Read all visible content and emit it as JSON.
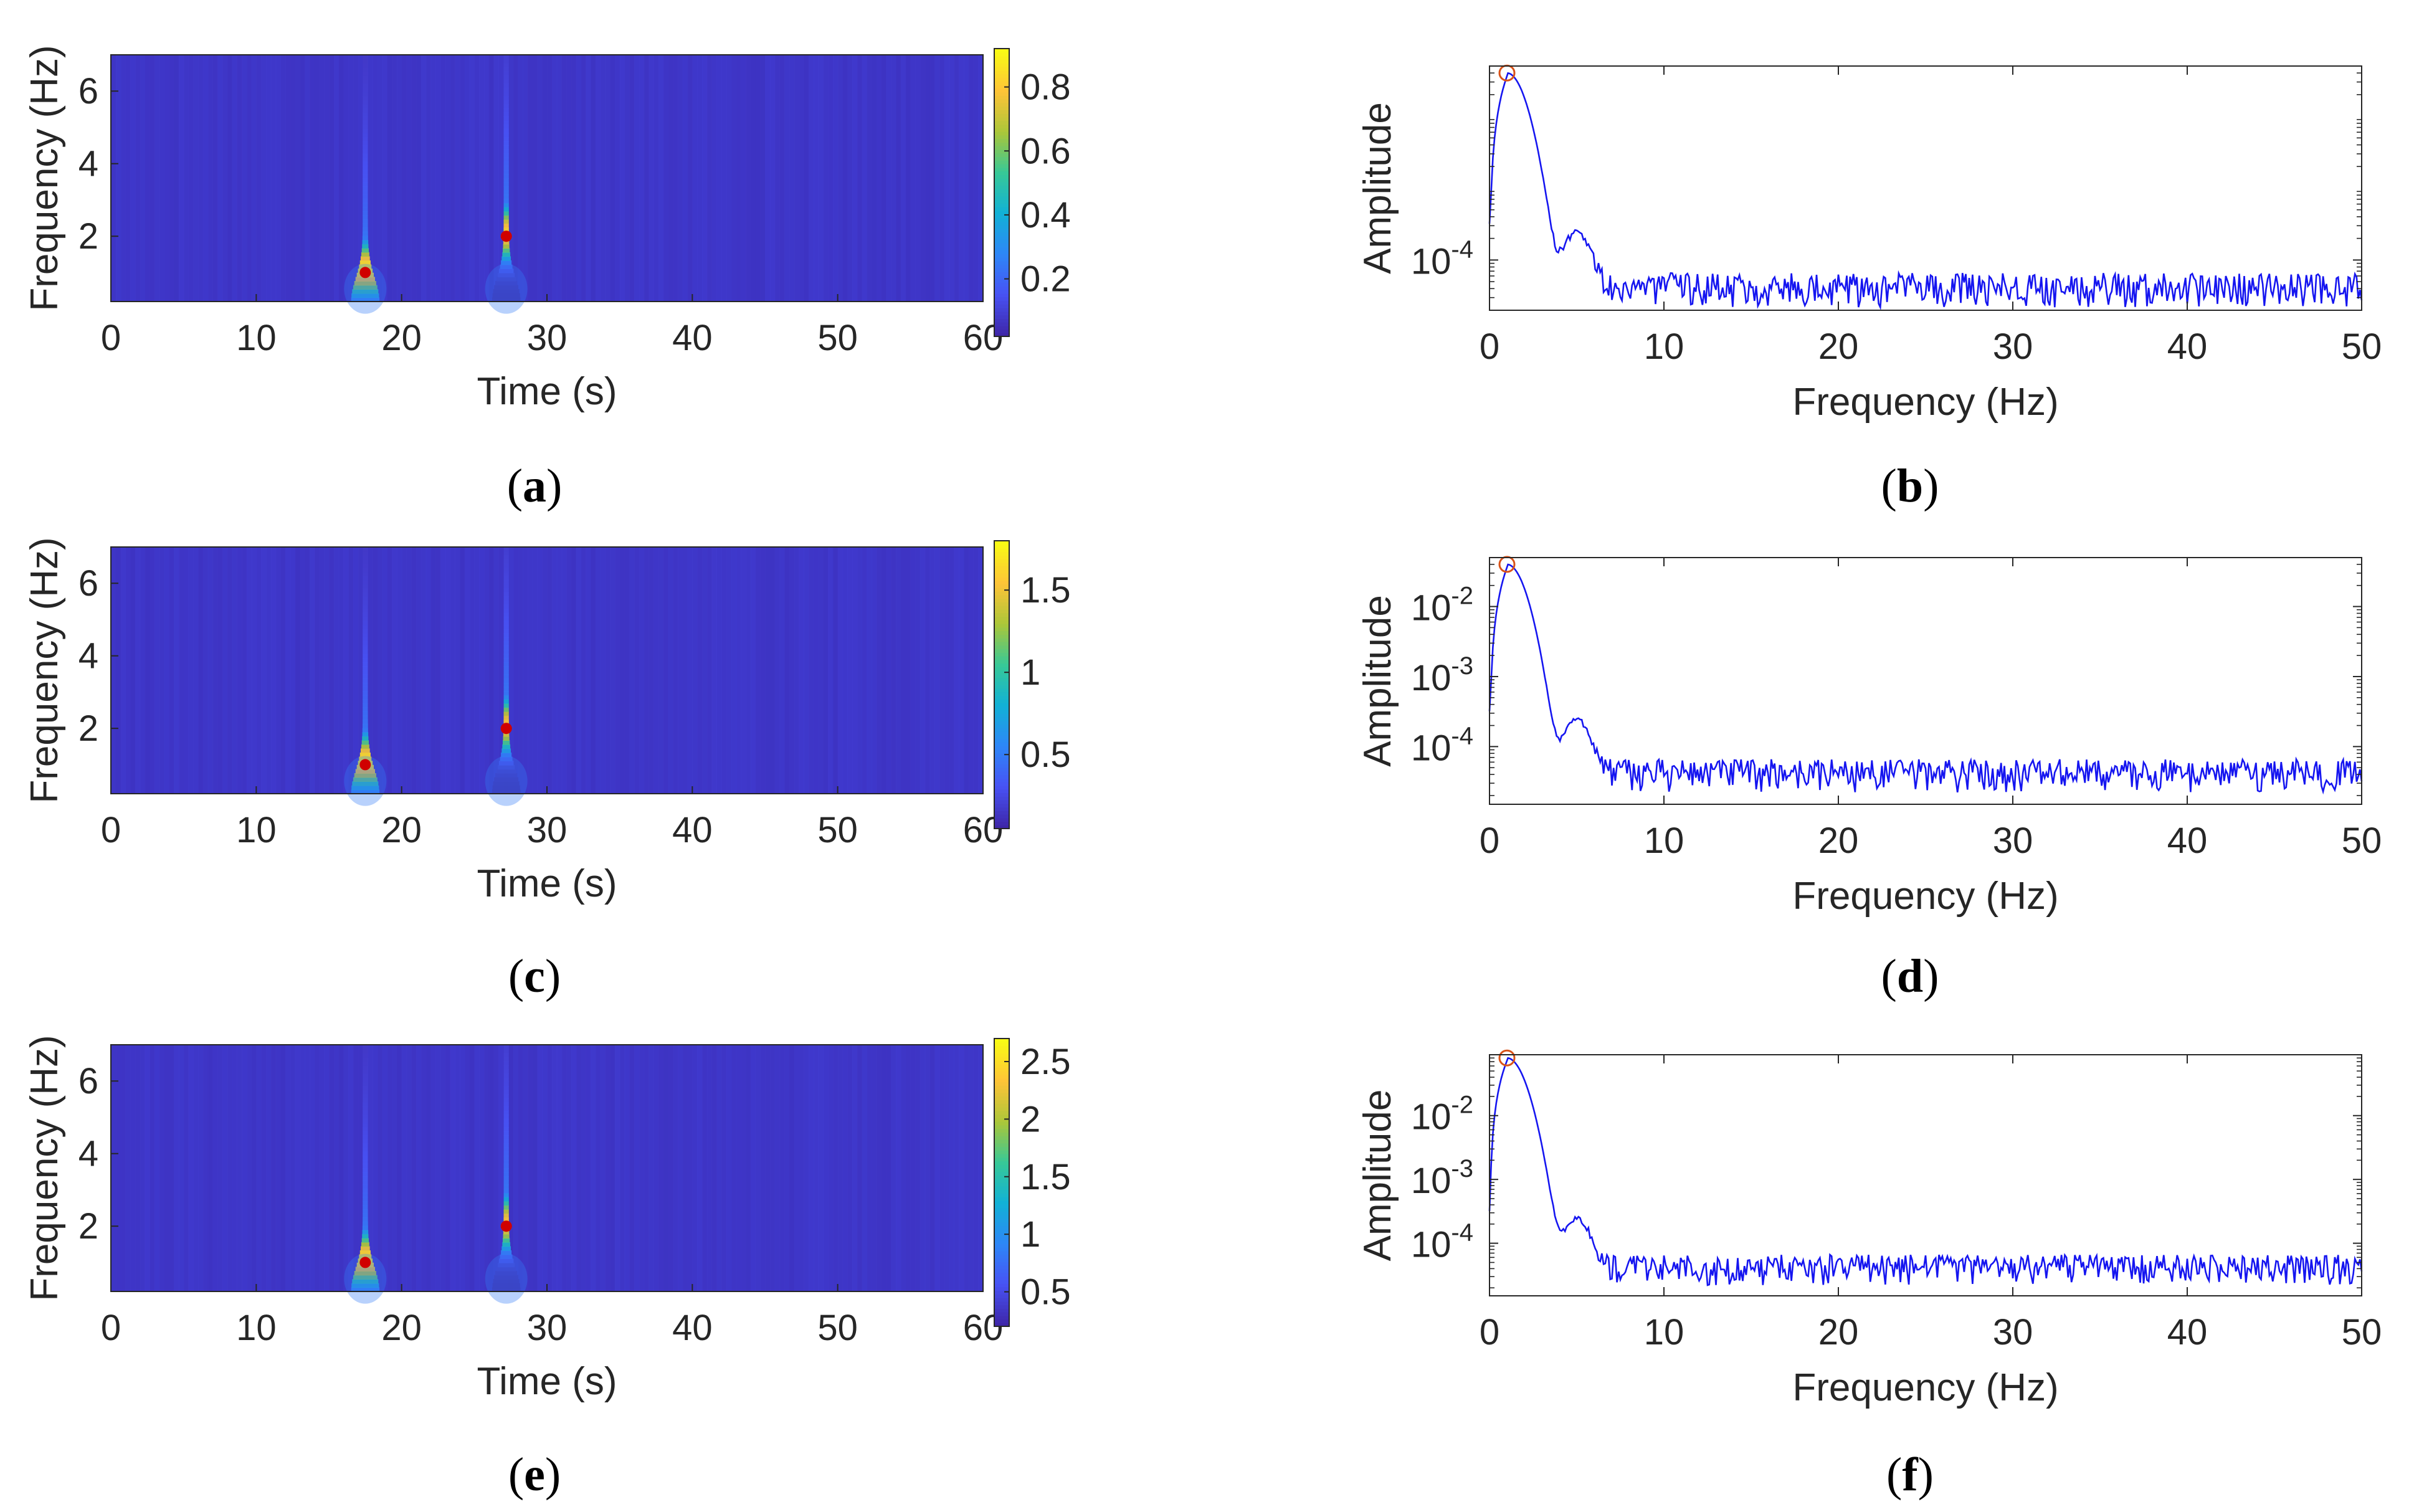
{
  "colors": {
    "spectrum_line": "#1515f0",
    "peak_marker": "#d95319",
    "ridge_marker": "#d00000",
    "heatmap_background": "#3b32c4",
    "axis": "#262626",
    "colormap": "parula"
  },
  "chart_data": [
    {
      "panel": "a",
      "type": "heatmap",
      "caption": "a",
      "xlabel": "Time (s)",
      "ylabel": "Frequency (Hz)",
      "xlim": [
        0,
        60
      ],
      "ylim": [
        0.2,
        7
      ],
      "xticks": [
        0,
        10,
        20,
        30,
        40,
        50,
        60
      ],
      "yticks": [
        2,
        4,
        6
      ],
      "colorbar": {
        "clim": [
          0.02,
          0.92
        ],
        "ticks": [
          0.2,
          0.4,
          0.6,
          0.8
        ],
        "tick_labels": [
          "0.2",
          "0.4",
          "0.6",
          "0.8"
        ]
      },
      "bursts": [
        {
          "t": 17.5,
          "peak": 0.9,
          "f_center": 1.1
        },
        {
          "t": 27.2,
          "peak": 0.85,
          "f_center": 2.1
        }
      ],
      "ridge_points": [
        {
          "t": 17.5,
          "f": 1.0
        },
        {
          "t": 27.2,
          "f": 2.0
        }
      ]
    },
    {
      "panel": "b",
      "type": "line",
      "caption": "b",
      "xlabel": "Frequency (Hz)",
      "ylabel": "Amplitude",
      "xlim": [
        0,
        50
      ],
      "yscale": "log",
      "ylim": [
        2e-05,
        0.05
      ],
      "xticks": [
        0,
        10,
        20,
        30,
        40,
        50
      ],
      "yticks": [
        0.0001
      ],
      "ytick_exponents": [
        "-4"
      ],
      "peak": {
        "f": 1.0,
        "amp": 0.04
      },
      "noise_floor": 4e-05
    },
    {
      "panel": "c",
      "type": "heatmap",
      "caption": "c",
      "xlabel": "Time (s)",
      "ylabel": "Frequency (Hz)",
      "xlim": [
        0,
        60
      ],
      "ylim": [
        0.2,
        7
      ],
      "xticks": [
        0,
        10,
        20,
        30,
        40,
        50,
        60
      ],
      "yticks": [
        2,
        4,
        6
      ],
      "colorbar": {
        "clim": [
          0.05,
          1.8
        ],
        "ticks": [
          0.5,
          1,
          1.5
        ],
        "tick_labels": [
          "0.5",
          "1",
          "1.5"
        ]
      },
      "bursts": [
        {
          "t": 17.5,
          "peak": 1.75,
          "f_center": 1.1
        },
        {
          "t": 27.2,
          "peak": 1.6,
          "f_center": 2.1
        }
      ],
      "ridge_points": [
        {
          "t": 17.5,
          "f": 1.0
        },
        {
          "t": 27.2,
          "f": 2.0
        }
      ]
    },
    {
      "panel": "d",
      "type": "line",
      "caption": "d",
      "xlabel": "Frequency (Hz)",
      "ylabel": "Amplitude",
      "xlim": [
        0,
        50
      ],
      "yscale": "log",
      "ylim": [
        1.5e-05,
        0.05
      ],
      "xticks": [
        0,
        10,
        20,
        30,
        40,
        50
      ],
      "yticks": [
        0.0001,
        0.001,
        0.01
      ],
      "ytick_exponents": [
        "-4",
        "-3",
        "-2"
      ],
      "peak": {
        "f": 1.0,
        "amp": 0.04
      },
      "noise_floor": 4e-05
    },
    {
      "panel": "e",
      "type": "heatmap",
      "caption": "e",
      "xlabel": "Time (s)",
      "ylabel": "Frequency (Hz)",
      "xlim": [
        0,
        60
      ],
      "ylim": [
        0.2,
        7
      ],
      "xticks": [
        0,
        10,
        20,
        30,
        40,
        50,
        60
      ],
      "yticks": [
        2,
        4,
        6
      ],
      "colorbar": {
        "clim": [
          0.2,
          2.7
        ],
        "ticks": [
          0.5,
          1,
          1.5,
          2,
          2.5
        ],
        "tick_labels": [
          "0.5",
          "1",
          "1.5",
          "2",
          "2.5"
        ]
      },
      "bursts": [
        {
          "t": 17.5,
          "peak": 2.6,
          "f_center": 1.1
        },
        {
          "t": 27.2,
          "peak": 2.4,
          "f_center": 2.1
        }
      ],
      "ridge_points": [
        {
          "t": 17.5,
          "f": 1.0
        },
        {
          "t": 27.2,
          "f": 2.0
        }
      ]
    },
    {
      "panel": "f",
      "type": "line",
      "caption": "f",
      "xlabel": "Frequency (Hz)",
      "ylabel": "Amplitude",
      "xlim": [
        0,
        50
      ],
      "yscale": "log",
      "ylim": [
        1.5e-05,
        0.09
      ],
      "xticks": [
        0,
        10,
        20,
        30,
        40,
        50
      ],
      "yticks": [
        0.0001,
        0.001,
        0.01
      ],
      "ytick_exponents": [
        "-4",
        "-3",
        "-2"
      ],
      "peak": {
        "f": 1.0,
        "amp": 0.08
      },
      "noise_floor": 4e-05
    }
  ]
}
